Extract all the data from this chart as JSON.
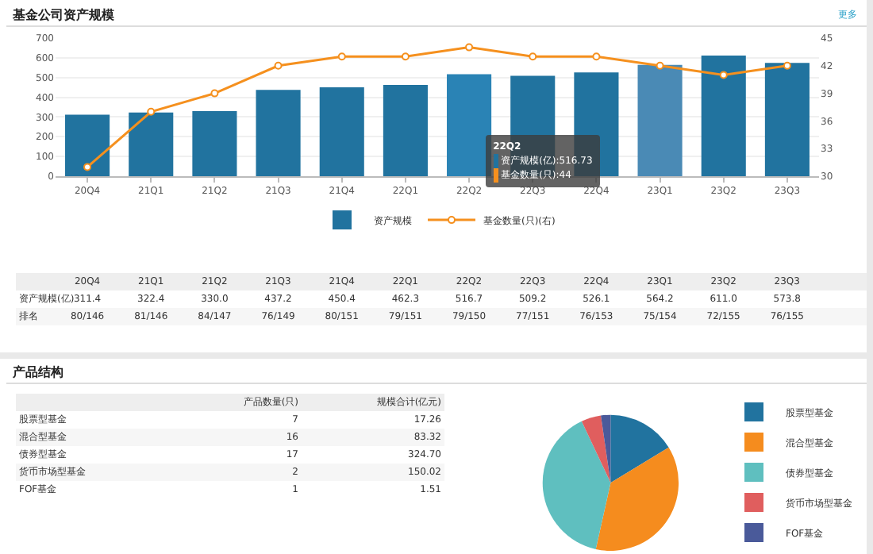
{
  "chart_data": [
    {
      "type": "bar",
      "title": "基金公司资产规模",
      "categories": [
        "20Q4",
        "21Q1",
        "21Q2",
        "21Q3",
        "21Q4",
        "22Q1",
        "22Q2",
        "22Q3",
        "22Q4",
        "23Q1",
        "23Q2",
        "23Q3"
      ],
      "series": [
        {
          "name": "资产规模",
          "color": "#21739f",
          "colors": [
            "#21739f",
            "#21739f",
            "#21739f",
            "#21739f",
            "#21739f",
            "#21739f",
            "#2a83b5",
            "#21739f",
            "#21739f",
            "#4a8ab5",
            "#21739f",
            "#21739f"
          ],
          "values": [
            311.4,
            322.4,
            330.0,
            437.2,
            450.4,
            462.3,
            516.7,
            509.2,
            526.1,
            564.2,
            611.0,
            573.8
          ],
          "value_labels": [
            "311.4",
            "322.4",
            "330.0",
            "437.2",
            "450.4",
            "462.3",
            "516.7",
            "509.2",
            "526.1",
            "564.2",
            "611.0",
            "573.8"
          ]
        },
        {
          "name": "基金数量(只)(右)",
          "type": "line",
          "axis": "y2",
          "color": "#f5901e",
          "values": [
            31,
            37,
            39,
            42,
            43,
            43,
            44,
            43,
            43,
            42,
            41,
            42
          ]
        }
      ],
      "ylim": [
        0,
        700
      ],
      "yticks": [
        0,
        100,
        200,
        300,
        400,
        500,
        600,
        700
      ],
      "y2lim": [
        30,
        45
      ],
      "y2ticks": [
        30,
        33,
        36,
        39,
        42,
        45
      ],
      "grid": "y",
      "legend": "bottom",
      "marker": "circle",
      "annotations": [
        "更多",
        "资产规模(亿)",
        "排名",
        "80/146",
        "81/146",
        "84/147",
        "76/149",
        "80/151",
        "79/151",
        "79/150",
        "77/151",
        "76/153",
        "75/154",
        "72/155",
        "76/155",
        "22Q2",
        "资产规模(亿):516.73",
        "基金数量(只):44"
      ]
    },
    {
      "type": "other",
      "title": "产品结构",
      "annotations": [
        "产品数量(只)",
        "规模合计(亿元)",
        "股票型基金",
        "7",
        "17.26",
        "混合型基金",
        "16",
        "83.32",
        "债券型基金",
        "17",
        "324.70",
        "货币市场型基金",
        "2",
        "150.02",
        "FOF基金",
        "1",
        "1.51"
      ]
    },
    {
      "type": "pie",
      "categories": [
        "股票型基金",
        "混合型基金",
        "债券型基金",
        "货币市场型基金",
        "FOF基金"
      ],
      "values": [
        16.3,
        37.2,
        39.5,
        4.7,
        2.3
      ],
      "colors": [
        "#21739f",
        "#f58c1e",
        "#5fbfbf",
        "#e05e5e",
        "#4a5a9a"
      ],
      "legend": "right"
    }
  ]
}
